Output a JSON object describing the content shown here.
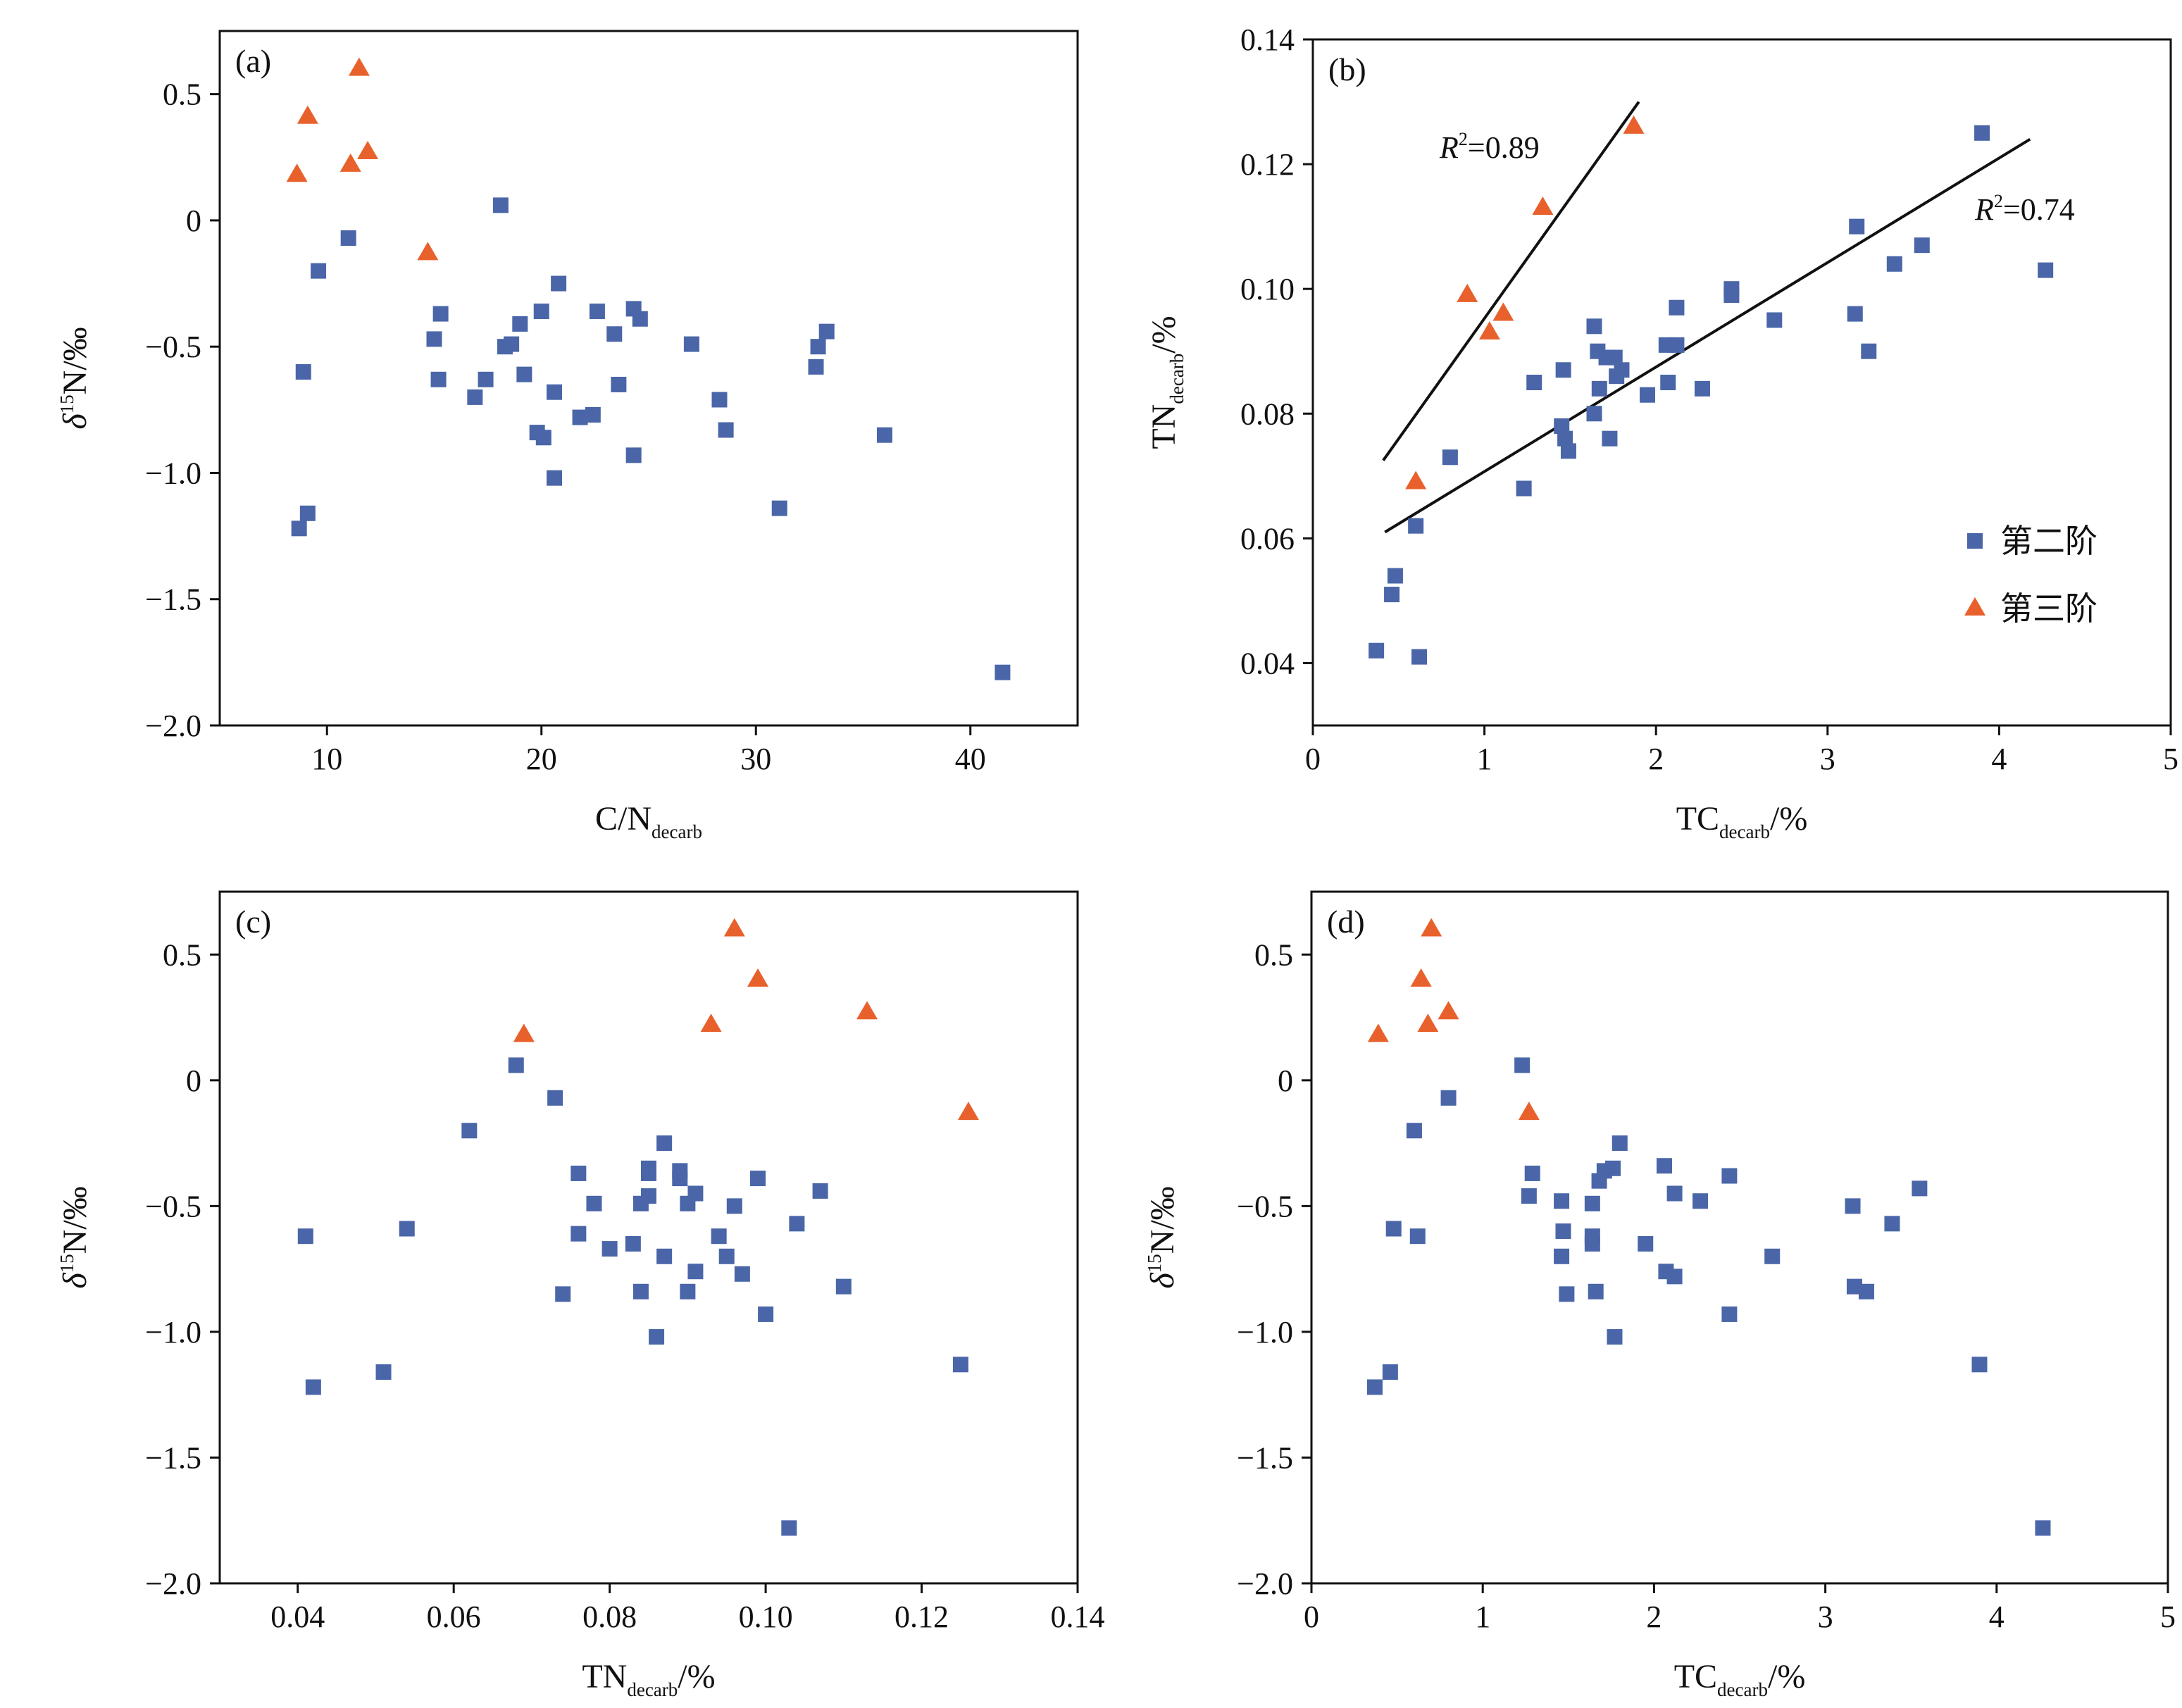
{
  "colors": {
    "stage2": "#4a66a8",
    "stage3": "#e8612c",
    "axis": "#111111",
    "fit_line": "#111111"
  },
  "legend": {
    "placement": "lower-right of panel (b)",
    "items": [
      {
        "series": "stage2",
        "label": "第二阶",
        "marker": "square-icon"
      },
      {
        "series": "stage3",
        "label": "第三阶",
        "marker": "triangle-icon"
      }
    ]
  },
  "chart_data": [
    {
      "type": "scatter",
      "panel": "(a)",
      "xlabel": {
        "main": "C/N",
        "sub": "decarb",
        "after": ""
      },
      "ylabel": {
        "pre": "δ",
        "sup": "15",
        "main": "N/‰"
      },
      "xlim": [
        5,
        45
      ],
      "ylim": [
        -2.0,
        0.75
      ],
      "xticks": [
        10,
        20,
        30,
        40
      ],
      "xtick_labels": [
        "10",
        "20",
        "30",
        "40"
      ],
      "yticks": [
        0.5,
        0,
        -0.5,
        -1.0,
        -1.5,
        -2.0
      ],
      "ytick_labels": [
        "0.5",
        "0",
        "−0.5",
        "−1.0",
        "−1.5",
        "−2.0"
      ],
      "series": [
        {
          "id": "stage2",
          "marker": "square",
          "points": [
            [
              18.1,
              0.06
            ],
            [
              11.0,
              -0.07
            ],
            [
              9.6,
              -0.2
            ],
            [
              20.8,
              -0.25
            ],
            [
              15.3,
              -0.37
            ],
            [
              20.0,
              -0.36
            ],
            [
              22.6,
              -0.36
            ],
            [
              24.3,
              -0.35
            ],
            [
              24.6,
              -0.39
            ],
            [
              19.0,
              -0.41
            ],
            [
              33.3,
              -0.44
            ],
            [
              23.4,
              -0.45
            ],
            [
              15.0,
              -0.47
            ],
            [
              27.0,
              -0.49
            ],
            [
              18.6,
              -0.49
            ],
            [
              18.3,
              -0.5
            ],
            [
              32.9,
              -0.5
            ],
            [
              32.8,
              -0.58
            ],
            [
              8.9,
              -0.6
            ],
            [
              19.2,
              -0.61
            ],
            [
              15.2,
              -0.63
            ],
            [
              17.4,
              -0.63
            ],
            [
              23.6,
              -0.65
            ],
            [
              20.6,
              -0.68
            ],
            [
              16.9,
              -0.7
            ],
            [
              28.3,
              -0.71
            ],
            [
              22.4,
              -0.77
            ],
            [
              21.8,
              -0.78
            ],
            [
              28.6,
              -0.83
            ],
            [
              19.8,
              -0.84
            ],
            [
              20.1,
              -0.86
            ],
            [
              36.0,
              -0.85
            ],
            [
              24.3,
              -0.93
            ],
            [
              20.6,
              -1.02
            ],
            [
              31.1,
              -1.14
            ],
            [
              9.1,
              -1.16
            ],
            [
              8.7,
              -1.22
            ],
            [
              41.5,
              -1.79
            ]
          ]
        },
        {
          "id": "stage3",
          "marker": "triangle",
          "points": [
            [
              11.5,
              0.6
            ],
            [
              9.1,
              0.41
            ],
            [
              11.9,
              0.27
            ],
            [
              11.1,
              0.22
            ],
            [
              8.6,
              0.18
            ],
            [
              14.7,
              -0.13
            ]
          ]
        }
      ]
    },
    {
      "type": "scatter",
      "panel": "(b)",
      "xlabel": {
        "main": "TC",
        "sub": "decarb",
        "after": "/%"
      },
      "ylabel": {
        "main": "TN",
        "sub": "decarb",
        "after": "/%"
      },
      "xlim": [
        0,
        5
      ],
      "ylim": [
        0.03,
        0.14
      ],
      "xticks": [
        0,
        1,
        2,
        3,
        4,
        5
      ],
      "xtick_labels": [
        "0",
        "1",
        "2",
        "3",
        "4",
        "5"
      ],
      "yticks": [
        0.04,
        0.06,
        0.08,
        0.1,
        0.12,
        0.14
      ],
      "ytick_labels": [
        "0.04",
        "0.06",
        "0.08",
        "0.10",
        "0.12",
        "0.14"
      ],
      "series": [
        {
          "id": "stage2",
          "marker": "square",
          "points": [
            [
              3.9,
              0.125
            ],
            [
              3.17,
              0.11
            ],
            [
              3.55,
              0.107
            ],
            [
              3.39,
              0.104
            ],
            [
              4.27,
              0.103
            ],
            [
              2.44,
              0.1
            ],
            [
              2.44,
              0.099
            ],
            [
              2.12,
              0.097
            ],
            [
              3.16,
              0.096
            ],
            [
              2.69,
              0.095
            ],
            [
              1.64,
              0.094
            ],
            [
              2.06,
              0.091
            ],
            [
              2.12,
              0.091
            ],
            [
              1.66,
              0.09
            ],
            [
              3.24,
              0.09
            ],
            [
              1.71,
              0.089
            ],
            [
              1.76,
              0.089
            ],
            [
              1.46,
              0.087
            ],
            [
              1.8,
              0.087
            ],
            [
              1.77,
              0.086
            ],
            [
              1.29,
              0.085
            ],
            [
              2.07,
              0.085
            ],
            [
              1.67,
              0.084
            ],
            [
              2.27,
              0.084
            ],
            [
              1.95,
              0.083
            ],
            [
              1.64,
              0.08
            ],
            [
              1.45,
              0.078
            ],
            [
              1.47,
              0.076
            ],
            [
              1.73,
              0.076
            ],
            [
              1.49,
              0.074
            ],
            [
              0.8,
              0.073
            ],
            [
              1.23,
              0.068
            ],
            [
              0.6,
              0.062
            ],
            [
              0.48,
              0.054
            ],
            [
              0.46,
              0.051
            ],
            [
              0.37,
              0.042
            ],
            [
              0.62,
              0.041
            ]
          ]
        },
        {
          "id": "stage3",
          "marker": "triangle",
          "points": [
            [
              1.87,
              0.126
            ],
            [
              1.34,
              0.113
            ],
            [
              0.9,
              0.099
            ],
            [
              1.11,
              0.096
            ],
            [
              1.03,
              0.093
            ],
            [
              0.6,
              0.069
            ]
          ]
        }
      ],
      "fits": [
        {
          "series": "stage3",
          "label_r": "R",
          "label_sup": "2",
          "label_value": "=0.89",
          "from": [
            0.41,
            0.0725
          ],
          "to": [
            1.9,
            0.13
          ]
        },
        {
          "series": "stage2",
          "label_r": "R",
          "label_sup": "2",
          "label_value": "=0.74",
          "from": [
            0.42,
            0.061
          ],
          "to": [
            4.18,
            0.124
          ]
        }
      ]
    },
    {
      "type": "scatter",
      "panel": "(c)",
      "xlabel": {
        "main": "TN",
        "sub": "decarb",
        "after": "/%"
      },
      "ylabel": {
        "pre": "δ",
        "sup": "15",
        "main": "N/‰"
      },
      "xlim": [
        0.03,
        0.14
      ],
      "ylim": [
        -2.0,
        0.75
      ],
      "xticks": [
        0.04,
        0.06,
        0.08,
        0.1,
        0.12,
        0.14
      ],
      "xtick_labels": [
        "0.04",
        "0.06",
        "0.08",
        "0.10",
        "0.12",
        "0.14"
      ],
      "yticks": [
        0.5,
        0,
        -0.5,
        -1.0,
        -1.5,
        -2.0
      ],
      "ytick_labels": [
        "0.5",
        "0",
        "−0.5",
        "−1.0",
        "−1.5",
        "−2.0"
      ],
      "series": [
        {
          "id": "stage2",
          "marker": "square",
          "points": [
            [
              0.068,
              0.06
            ],
            [
              0.073,
              -0.07
            ],
            [
              0.062,
              -0.2
            ],
            [
              0.087,
              -0.25
            ],
            [
              0.076,
              -0.37
            ],
            [
              0.085,
              -0.35
            ],
            [
              0.085,
              -0.37
            ],
            [
              0.089,
              -0.36
            ],
            [
              0.089,
              -0.39
            ],
            [
              0.099,
              -0.39
            ],
            [
              0.107,
              -0.44
            ],
            [
              0.085,
              -0.46
            ],
            [
              0.091,
              -0.45
            ],
            [
              0.084,
              -0.49
            ],
            [
              0.078,
              -0.49
            ],
            [
              0.09,
              -0.49
            ],
            [
              0.096,
              -0.5
            ],
            [
              0.104,
              -0.57
            ],
            [
              0.054,
              -0.59
            ],
            [
              0.076,
              -0.61
            ],
            [
              0.041,
              -0.62
            ],
            [
              0.094,
              -0.62
            ],
            [
              0.083,
              -0.65
            ],
            [
              0.08,
              -0.67
            ],
            [
              0.087,
              -0.7
            ],
            [
              0.095,
              -0.7
            ],
            [
              0.097,
              -0.77
            ],
            [
              0.091,
              -0.76
            ],
            [
              0.11,
              -0.82
            ],
            [
              0.074,
              -0.85
            ],
            [
              0.084,
              -0.84
            ],
            [
              0.09,
              -0.84
            ],
            [
              0.1,
              -0.93
            ],
            [
              0.086,
              -1.02
            ],
            [
              0.125,
              -1.13
            ],
            [
              0.051,
              -1.16
            ],
            [
              0.042,
              -1.22
            ],
            [
              0.103,
              -1.78
            ]
          ]
        },
        {
          "id": "stage3",
          "marker": "triangle",
          "points": [
            [
              0.096,
              0.6
            ],
            [
              0.099,
              0.4
            ],
            [
              0.113,
              0.27
            ],
            [
              0.093,
              0.22
            ],
            [
              0.069,
              0.18
            ],
            [
              0.126,
              -0.13
            ]
          ]
        }
      ]
    },
    {
      "type": "scatter",
      "panel": "(d)",
      "xlabel": {
        "main": "TC",
        "sub": "decarb",
        "after": "/%"
      },
      "ylabel": {
        "pre": "δ",
        "sup": "15",
        "main": "N/‰"
      },
      "xlim": [
        0,
        5
      ],
      "ylim": [
        -2.0,
        0.75
      ],
      "xticks": [
        0,
        1,
        2,
        3,
        4,
        5
      ],
      "xtick_labels": [
        "0",
        "1",
        "2",
        "3",
        "4",
        "5"
      ],
      "yticks": [
        0.5,
        0,
        -0.5,
        -1.0,
        -1.5,
        -2.0
      ],
      "ytick_labels": [
        "0.5",
        "0",
        "−0.5",
        "−1.0",
        "−1.5",
        "−2.0"
      ],
      "series": [
        {
          "id": "stage2",
          "marker": "square",
          "points": [
            [
              1.23,
              0.06
            ],
            [
              0.8,
              -0.07
            ],
            [
              0.6,
              -0.2
            ],
            [
              1.8,
              -0.25
            ],
            [
              1.29,
              -0.37
            ],
            [
              1.71,
              -0.36
            ],
            [
              1.76,
              -0.35
            ],
            [
              2.06,
              -0.34
            ],
            [
              2.44,
              -0.38
            ],
            [
              1.68,
              -0.4
            ],
            [
              3.55,
              -0.43
            ],
            [
              1.27,
              -0.46
            ],
            [
              2.12,
              -0.45
            ],
            [
              1.46,
              -0.48
            ],
            [
              1.64,
              -0.49
            ],
            [
              2.27,
              -0.48
            ],
            [
              3.16,
              -0.5
            ],
            [
              3.39,
              -0.57
            ],
            [
              0.48,
              -0.59
            ],
            [
              1.47,
              -0.6
            ],
            [
              0.62,
              -0.62
            ],
            [
              1.64,
              -0.62
            ],
            [
              1.64,
              -0.65
            ],
            [
              1.95,
              -0.65
            ],
            [
              1.46,
              -0.7
            ],
            [
              2.69,
              -0.7
            ],
            [
              2.07,
              -0.76
            ],
            [
              2.12,
              -0.78
            ],
            [
              3.17,
              -0.82
            ],
            [
              3.24,
              -0.84
            ],
            [
              1.66,
              -0.84
            ],
            [
              1.49,
              -0.85
            ],
            [
              2.44,
              -0.93
            ],
            [
              1.77,
              -1.02
            ],
            [
              3.9,
              -1.13
            ],
            [
              0.46,
              -1.16
            ],
            [
              0.37,
              -1.22
            ],
            [
              4.27,
              -1.78
            ]
          ]
        },
        {
          "id": "stage3",
          "marker": "triangle",
          "points": [
            [
              0.7,
              0.6
            ],
            [
              0.64,
              0.4
            ],
            [
              0.8,
              0.27
            ],
            [
              0.68,
              0.22
            ],
            [
              0.39,
              0.18
            ],
            [
              1.27,
              -0.13
            ]
          ]
        }
      ]
    }
  ]
}
